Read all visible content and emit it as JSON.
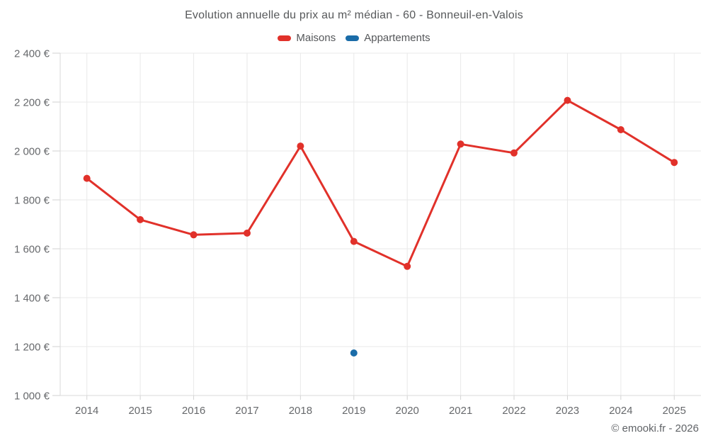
{
  "header": {
    "title": "Evolution annuelle du prix au m² médian - 60 - Bonneuil-en-Valois"
  },
  "footer": {
    "copyright": "© emooki.fr - 2026"
  },
  "chart_data": {
    "type": "line",
    "title": "Evolution annuelle du prix au m² médian - 60 - Bonneuil-en-Valois",
    "xlabel": "",
    "ylabel": "",
    "ylim": [
      1000,
      2400
    ],
    "grid": true,
    "legend_position": "top",
    "categories": [
      "2014",
      "2015",
      "2016",
      "2017",
      "2018",
      "2019",
      "2020",
      "2021",
      "2022",
      "2023",
      "2024",
      "2025"
    ],
    "series": [
      {
        "id": "maisons",
        "name": "Maisons",
        "color": "#e1312a",
        "values": [
          1888,
          1719,
          1657,
          1664,
          2020,
          1630,
          1528,
          2028,
          1992,
          2207,
          2087,
          1953
        ]
      },
      {
        "id": "appartements",
        "name": "Appartements",
        "color": "#1a6ca8",
        "values": [
          null,
          null,
          null,
          null,
          null,
          1174,
          null,
          null,
          null,
          null,
          null,
          null
        ]
      }
    ],
    "yticks": [
      {
        "value": 1000,
        "label": "1 000 €"
      },
      {
        "value": 1200,
        "label": "1 200 €"
      },
      {
        "value": 1400,
        "label": "1 400 €"
      },
      {
        "value": 1600,
        "label": "1 600 €"
      },
      {
        "value": 1800,
        "label": "1 800 €"
      },
      {
        "value": 2000,
        "label": "2 000 €"
      },
      {
        "value": 2200,
        "label": "2 200 €"
      },
      {
        "value": 2400,
        "label": "2 400 €"
      }
    ],
    "colors": {
      "grid": "#e9e9e9",
      "axis": "#d9d9d9",
      "tick": "#d2d2d2"
    }
  }
}
